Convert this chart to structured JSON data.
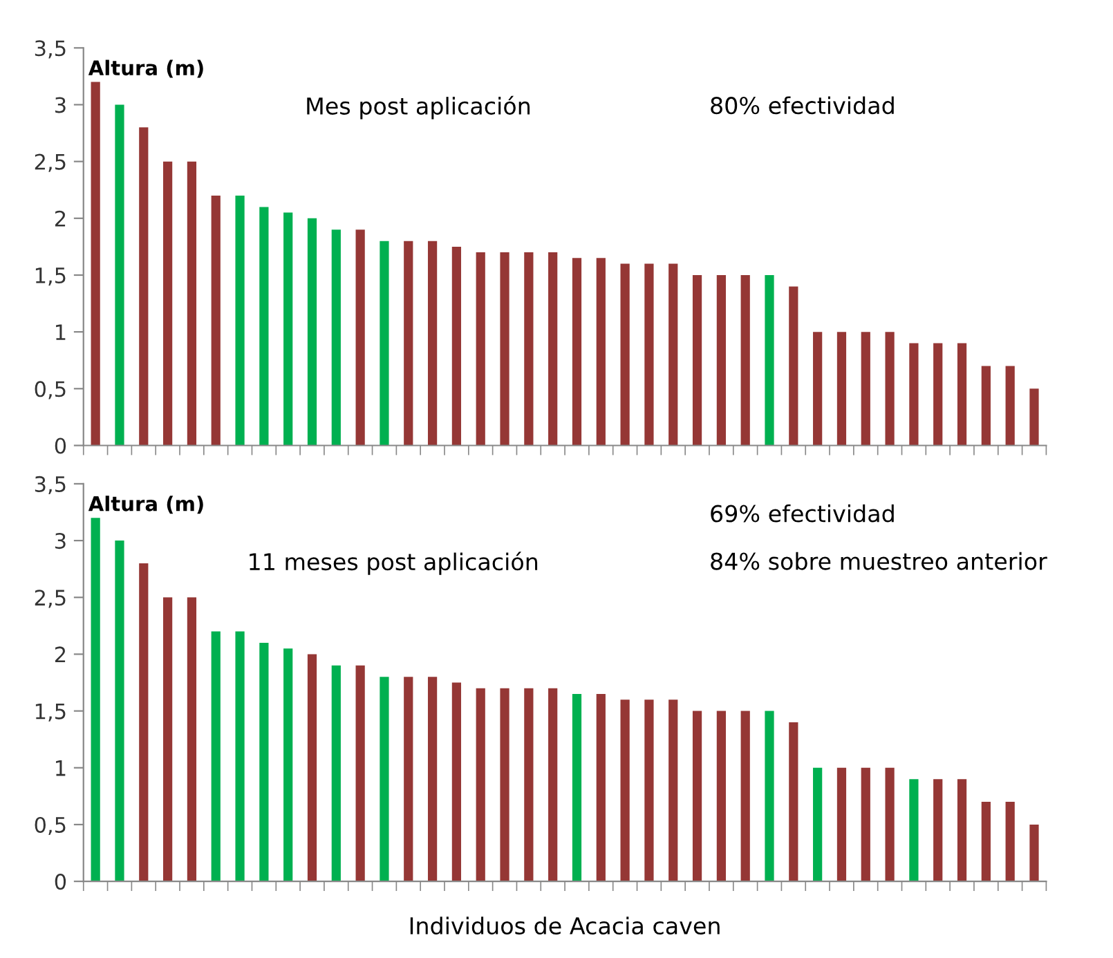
{
  "chart_data": [
    {
      "type": "bar",
      "ylabel": "Altura (m)",
      "categories": [
        null,
        null,
        null,
        null,
        null,
        null,
        null,
        null,
        null,
        null,
        null,
        null,
        null,
        null,
        null,
        null,
        null,
        null,
        null,
        null,
        null,
        null,
        null,
        null,
        null,
        null,
        null,
        null,
        null,
        null,
        null,
        null,
        null,
        null,
        null,
        null,
        null,
        null,
        null,
        null
      ],
      "values": [
        3.2,
        3.0,
        2.8,
        2.5,
        2.5,
        2.2,
        2.2,
        2.1,
        2.05,
        2.0,
        1.9,
        1.9,
        1.8,
        1.8,
        1.8,
        1.75,
        1.7,
        1.7,
        1.7,
        1.7,
        1.65,
        1.65,
        1.6,
        1.6,
        1.6,
        1.5,
        1.5,
        1.5,
        1.5,
        1.4,
        1.0,
        1.0,
        1.0,
        1.0,
        0.9,
        0.9,
        0.9,
        0.7,
        0.7,
        0.5
      ],
      "colors": [
        "#953735",
        "#00b050",
        "#953735",
        "#953735",
        "#953735",
        "#953735",
        "#00b050",
        "#00b050",
        "#00b050",
        "#00b050",
        "#00b050",
        "#953735",
        "#00b050",
        "#953735",
        "#953735",
        "#953735",
        "#953735",
        "#953735",
        "#953735",
        "#953735",
        "#953735",
        "#953735",
        "#953735",
        "#953735",
        "#953735",
        "#953735",
        "#953735",
        "#953735",
        "#00b050",
        "#953735",
        "#953735",
        "#953735",
        "#953735",
        "#953735",
        "#953735",
        "#953735",
        "#953735",
        "#953735",
        "#953735",
        "#953735"
      ],
      "ylim": [
        0,
        3.5
      ],
      "yticks": [
        0,
        {
          "value": 0.5,
          "label": "0,5"
        },
        1,
        {
          "value": 1.5,
          "label": "1,5"
        },
        2,
        {
          "value": 2.5,
          "label": "2,5"
        },
        3,
        {
          "value": 3.5,
          "label": "3,5"
        }
      ],
      "annotations": [
        "Mes post aplicación",
        "80% efectividad"
      ],
      "grid": false,
      "legend": false
    },
    {
      "type": "bar",
      "ylabel": "Altura (m)",
      "xlabel": "Individuos de Acacia caven",
      "categories": [
        null,
        null,
        null,
        null,
        null,
        null,
        null,
        null,
        null,
        null,
        null,
        null,
        null,
        null,
        null,
        null,
        null,
        null,
        null,
        null,
        null,
        null,
        null,
        null,
        null,
        null,
        null,
        null,
        null,
        null,
        null,
        null,
        null,
        null,
        null,
        null,
        null,
        null,
        null,
        null
      ],
      "values": [
        3.2,
        3.0,
        2.8,
        2.5,
        2.5,
        2.2,
        2.2,
        2.1,
        2.05,
        2.0,
        1.9,
        1.9,
        1.8,
        1.8,
        1.8,
        1.75,
        1.7,
        1.7,
        1.7,
        1.7,
        1.65,
        1.65,
        1.6,
        1.6,
        1.6,
        1.5,
        1.5,
        1.5,
        1.5,
        1.4,
        1.0,
        1.0,
        1.0,
        1.0,
        0.9,
        0.9,
        0.9,
        0.7,
        0.7,
        0.5
      ],
      "colors": [
        "#00b050",
        "#00b050",
        "#953735",
        "#953735",
        "#953735",
        "#00b050",
        "#00b050",
        "#00b050",
        "#00b050",
        "#953735",
        "#00b050",
        "#953735",
        "#00b050",
        "#953735",
        "#953735",
        "#953735",
        "#953735",
        "#953735",
        "#953735",
        "#953735",
        "#00b050",
        "#953735",
        "#953735",
        "#953735",
        "#953735",
        "#953735",
        "#953735",
        "#953735",
        "#00b050",
        "#953735",
        "#00b050",
        "#953735",
        "#953735",
        "#953735",
        "#00b050",
        "#953735",
        "#953735",
        "#953735",
        "#953735",
        "#953735"
      ],
      "ylim": [
        0,
        3.5
      ],
      "yticks": [
        0,
        {
          "value": 0.5,
          "label": "0,5"
        },
        1,
        {
          "value": 1.5,
          "label": "1,5"
        },
        2,
        {
          "value": 2.5,
          "label": "2,5"
        },
        3,
        {
          "value": 3.5,
          "label": "3,5"
        }
      ],
      "annotations": [
        "69% efectividad",
        "84% sobre muestreo anterior",
        "11 meses post aplicación"
      ],
      "grid": false,
      "legend": false
    }
  ]
}
